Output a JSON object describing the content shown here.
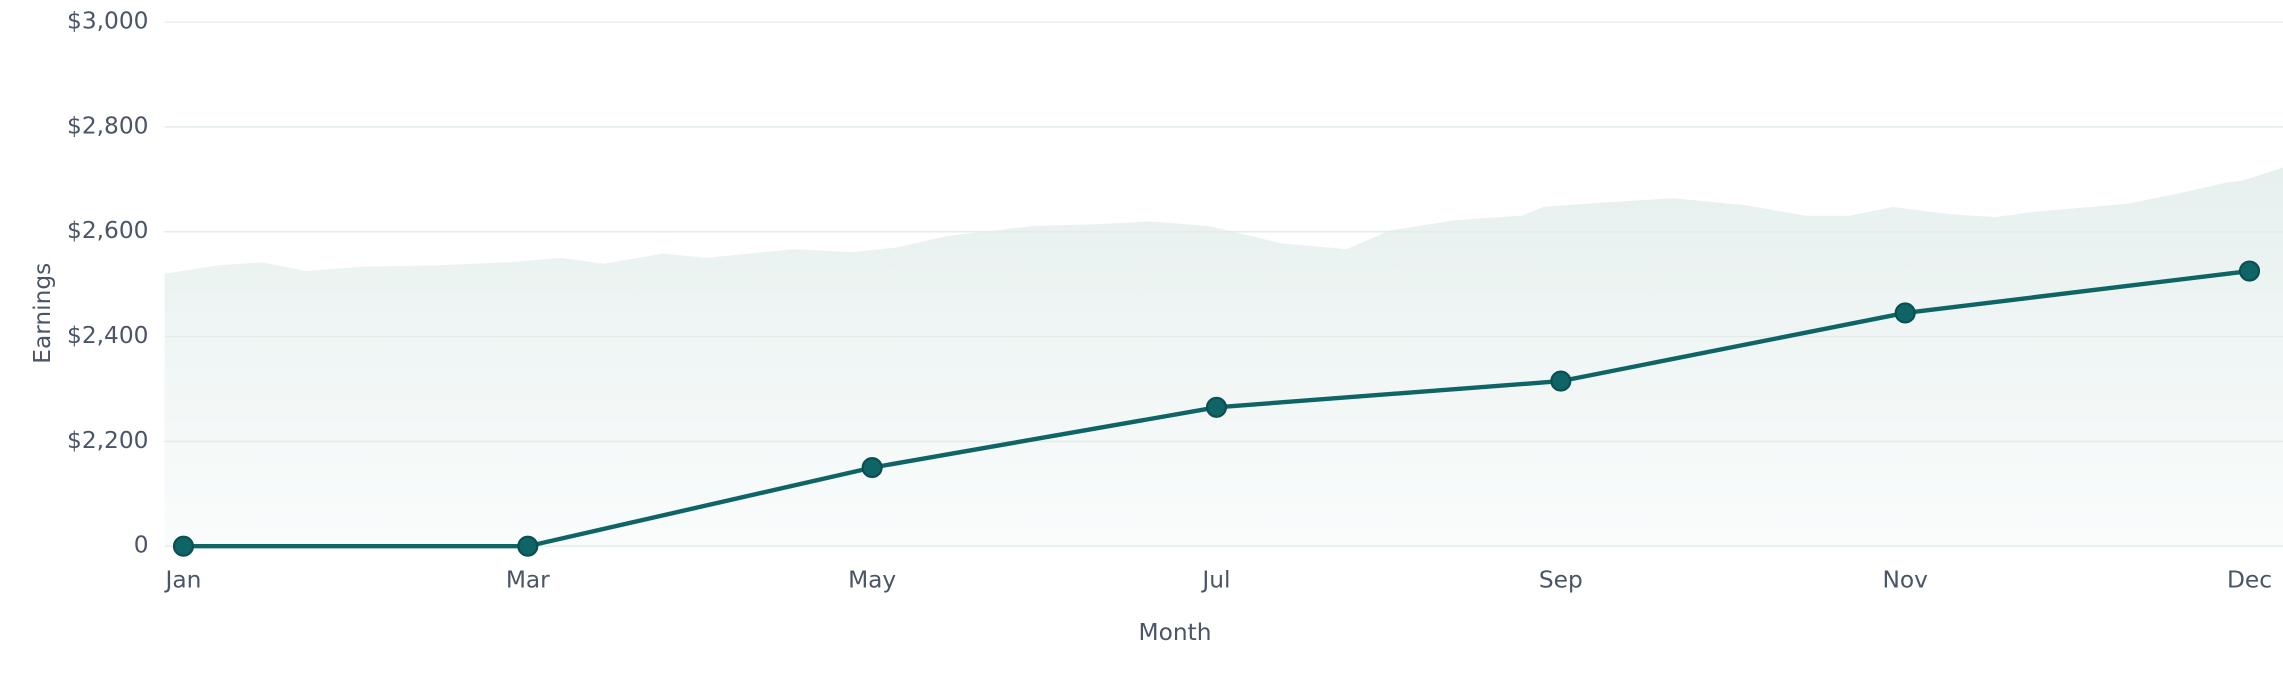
{
  "chart_data": {
    "type": "line",
    "x_label": "Month",
    "y_label": "Earnings",
    "categories": [
      "Jan",
      "Mar",
      "May",
      "Jul",
      "Sep",
      "Nov",
      "Dec"
    ],
    "series": [
      {
        "color": "#0f6466",
        "values": [
          0,
          0,
          1650,
          2265,
          2315,
          2445,
          2525
        ]
      }
    ],
    "ylim": [
      0,
      3000
    ],
    "yticks": [
      0,
      {
        "value": 2200,
        "label": "$2,200"
      },
      {
        "value": 2400,
        "label": "$2,400"
      },
      {
        "value": 2600,
        "label": "$2,600"
      },
      {
        "value": 2800,
        "label": "$2,800"
      },
      {
        "value": 3000,
        "label": "$3,000"
      }
    ],
    "grid": true
  }
}
